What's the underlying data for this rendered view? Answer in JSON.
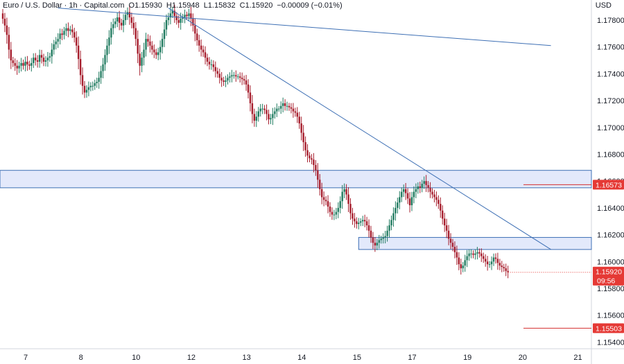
{
  "header": {
    "symbol": "Euro / U.S. Dollar · 1h · Capital.com",
    "open": "O1.15930",
    "high": "H1.15948",
    "low": "L1.15832",
    "close": "C1.15920",
    "change": "−0.00009 (−0.01%)",
    "currency": "USD"
  },
  "colors": {
    "up": "#26a69a",
    "down": "#ef5350",
    "candle_up": "#1f7a5f",
    "candle_down": "#a61d2c",
    "trendline": "#3d6fb4",
    "zone_fill": "#e3e9fb",
    "zone_stroke": "#3d6fb4",
    "level_line": "#d32f2f",
    "badge": "#e53935"
  },
  "badges": {
    "resistance": "1.16573",
    "support": "1.15503",
    "last_price": "1.15920",
    "countdown": "09:56"
  },
  "chart_data": {
    "type": "candlestick",
    "title": "Euro / U.S. Dollar · 1h · Capital.com",
    "y_axis": {
      "position": "right",
      "ylim": [
        1.1535,
        1.1795
      ],
      "ticks": [
        "1.17800",
        "1.17600",
        "1.17400",
        "1.17200",
        "1.17000",
        "1.16800",
        "1.16600",
        "1.16400",
        "1.16200",
        "1.16000",
        "1.15800",
        "1.15600",
        "1.15400"
      ]
    },
    "x_axis": {
      "labels": [
        "7",
        "8",
        "10",
        "12",
        "13",
        "14",
        "15",
        "17",
        "19",
        "20",
        "21"
      ],
      "label_bar_index": [
        0,
        27,
        54,
        81,
        108,
        135,
        162,
        189,
        216,
        243,
        270
      ]
    },
    "ohlc_note": "approximate hourly closes read from the chart; open = previous close",
    "closes": [
      1.1781,
      1.1776,
      1.1769,
      1.1758,
      1.175,
      1.1748,
      1.1746,
      1.1744,
      1.1746,
      1.1748,
      1.1746,
      1.1749,
      1.1747,
      1.1746,
      1.1748,
      1.1752,
      1.175,
      1.1749,
      1.1754,
      1.1752,
      1.1749,
      1.175,
      1.1752,
      1.1753,
      1.1758,
      1.1762,
      1.1764,
      1.1766,
      1.177,
      1.1769,
      1.1772,
      1.1774,
      1.1772,
      1.1773,
      1.1771,
      1.1767,
      1.1761,
      1.1751,
      1.1739,
      1.1731,
      1.1726,
      1.1728,
      1.173,
      1.1731,
      1.1731,
      1.1733,
      1.1734,
      1.1737,
      1.1742,
      1.1747,
      1.1754,
      1.1761,
      1.1767,
      1.1774,
      1.1777,
      1.1779,
      1.1782,
      1.1778,
      1.1776,
      1.178,
      1.1784,
      1.1786,
      1.1782,
      1.1778,
      1.1774,
      1.1766,
      1.1755,
      1.1746,
      1.1752,
      1.1758,
      1.1766,
      1.1764,
      1.1761,
      1.1758,
      1.1756,
      1.1754,
      1.1756,
      1.176,
      1.1766,
      1.1773,
      1.178,
      1.1782,
      1.1785,
      1.1787,
      1.1783,
      1.178,
      1.1778,
      1.1781,
      1.1782,
      1.1784,
      1.1783,
      1.1785,
      1.1781,
      1.1776,
      1.177,
      1.1765,
      1.1761,
      1.1758,
      1.1756,
      1.1752,
      1.1749,
      1.1747,
      1.1747,
      1.1745,
      1.1742,
      1.174,
      1.1737,
      1.1735,
      1.1734,
      1.1735,
      1.1737,
      1.1738,
      1.1739,
      1.1739,
      1.1738,
      1.1738,
      1.1737,
      1.1736,
      1.1735,
      1.1732,
      1.1726,
      1.1718,
      1.171,
      1.1705,
      1.1708,
      1.1712,
      1.1714,
      1.1714,
      1.1713,
      1.171,
      1.1706,
      1.1707,
      1.171,
      1.1712,
      1.1714,
      1.1714,
      1.1716,
      1.1718,
      1.1716,
      1.1716,
      1.1715,
      1.1714,
      1.1712,
      1.1711,
      1.1708,
      1.1703,
      1.1696,
      1.1689,
      1.1683,
      1.1679,
      1.1677,
      1.1676,
      1.1672,
      1.1668,
      1.1661,
      1.1654,
      1.1648,
      1.1646,
      1.1645,
      1.1641,
      1.1637,
      1.1635,
      1.1635,
      1.1637,
      1.164,
      1.1645,
      1.1652,
      1.1654,
      1.165,
      1.1643,
      1.1636,
      1.1632,
      1.163,
      1.1628,
      1.1629,
      1.163,
      1.1631,
      1.163,
      1.1627,
      1.1623,
      1.1618,
      1.1614,
      1.1612,
      1.1614,
      1.1616,
      1.1617,
      1.1618,
      1.1619,
      1.1623,
      1.1627,
      1.1631,
      1.1636,
      1.164,
      1.1644,
      1.1648,
      1.1652,
      1.1654,
      1.1651,
      1.1647,
      1.1642,
      1.1648,
      1.1652,
      1.1654,
      1.1656,
      1.1655,
      1.1658,
      1.166,
      1.1657,
      1.1655,
      1.1652,
      1.165,
      1.1648,
      1.1646,
      1.1643,
      1.1638,
      1.1632,
      1.1627,
      1.1623,
      1.1617,
      1.1614,
      1.1611,
      1.1607,
      1.1603,
      1.1598,
      1.1595,
      1.1597,
      1.1601,
      1.1604,
      1.1606,
      1.1606,
      1.1605,
      1.1606,
      1.1607,
      1.1606,
      1.1604,
      1.1602,
      1.16,
      1.1598,
      1.1598,
      1.16,
      1.1603,
      1.1602,
      1.1599,
      1.1597,
      1.1596,
      1.1595,
      1.1593,
      1.1592
    ],
    "trendlines": [
      {
        "from": {
          "bar": 27,
          "price": 1.1789
        },
        "to": {
          "bar": 268,
          "price": 1.1761
        }
      },
      {
        "from": {
          "bar": 81,
          "price": 1.1789
        },
        "to": {
          "bar": 268,
          "price": 1.1609
        }
      }
    ],
    "zones": [
      {
        "name": "upper supply zone",
        "top": 1.1668,
        "bottom": 1.1655,
        "from_bar": 0
      },
      {
        "name": "demand zone",
        "top": 1.1618,
        "bottom": 1.1609,
        "from_bar": 174
      }
    ],
    "levels": [
      {
        "name": "resistance",
        "price": 1.16573
      },
      {
        "name": "support",
        "price": 1.15503
      }
    ],
    "last_price": 1.1592
  }
}
